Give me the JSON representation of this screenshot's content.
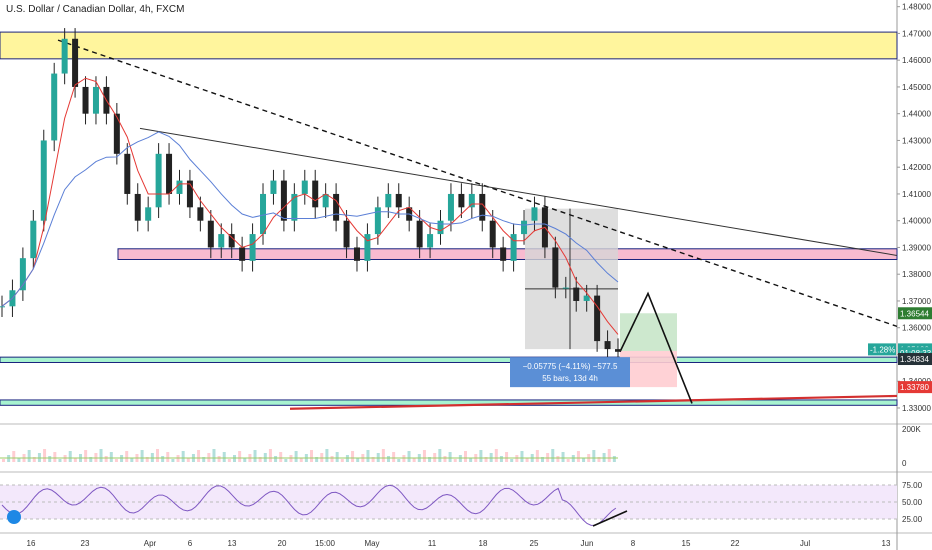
{
  "header": {
    "title": "U.S. Dollar / Canadian Dollar, 4h, FXCM"
  },
  "colors": {
    "bull": "#26a69a",
    "bear": "#ef5350",
    "candle_body_bull": "#26a69a",
    "candle_body_bear": "#222222",
    "ma_red": "#e53935",
    "ma_blue": "#5b7fd6",
    "rsi_line": "#7e57c2",
    "rsi_fill": "#f3e8fb",
    "yellow_zone": "#fff59d",
    "pink_zone": "#f8bbd0",
    "teal_zone": "#a7f3d0",
    "green_target": "#c8e6c9",
    "red_stop": "#ffcdd2",
    "axis_text": "#333333"
  },
  "chart_data": [
    {
      "type": "candlestick",
      "title": "U.S. Dollar / Canadian Dollar, 4h, FXCM",
      "y_ticks": [
        "1.48000",
        "1.47000",
        "1.46000",
        "1.45000",
        "1.44000",
        "1.43000",
        "1.42000",
        "1.41000",
        "1.40000",
        "1.39000",
        "1.38000",
        "1.37000",
        "1.36000",
        "1.35000",
        "1.34000",
        "1.33000"
      ],
      "ylim": [
        1.327,
        1.481
      ],
      "x_ticks": [
        "16",
        "23",
        "Apr",
        "6",
        "13",
        "20",
        "15:00",
        "May",
        "11",
        "18",
        "25",
        "Jun",
        "8",
        "15",
        "22",
        "Jul",
        "13"
      ],
      "price_path": [
        [
          0,
          1.368
        ],
        [
          1,
          1.374
        ],
        [
          2,
          1.386
        ],
        [
          3,
          1.4
        ],
        [
          4,
          1.43
        ],
        [
          5,
          1.455
        ],
        [
          6,
          1.468
        ],
        [
          7,
          1.45
        ],
        [
          8,
          1.44
        ],
        [
          9,
          1.45
        ],
        [
          10,
          1.44
        ],
        [
          11,
          1.425
        ],
        [
          12,
          1.41
        ],
        [
          13,
          1.4
        ],
        [
          14,
          1.405
        ],
        [
          15,
          1.425
        ],
        [
          16,
          1.41
        ],
        [
          17,
          1.415
        ],
        [
          18,
          1.405
        ],
        [
          19,
          1.4
        ],
        [
          20,
          1.39
        ],
        [
          21,
          1.395
        ],
        [
          22,
          1.39
        ],
        [
          23,
          1.385
        ],
        [
          24,
          1.395
        ],
        [
          25,
          1.41
        ],
        [
          26,
          1.415
        ],
        [
          27,
          1.4
        ],
        [
          28,
          1.41
        ],
        [
          29,
          1.415
        ],
        [
          30,
          1.405
        ],
        [
          31,
          1.41
        ],
        [
          32,
          1.4
        ],
        [
          33,
          1.39
        ],
        [
          34,
          1.385
        ],
        [
          35,
          1.395
        ],
        [
          36,
          1.405
        ],
        [
          37,
          1.41
        ],
        [
          38,
          1.405
        ],
        [
          39,
          1.4
        ],
        [
          40,
          1.39
        ],
        [
          41,
          1.395
        ],
        [
          42,
          1.4
        ],
        [
          43,
          1.41
        ],
        [
          44,
          1.405
        ],
        [
          45,
          1.41
        ],
        [
          46,
          1.4
        ],
        [
          47,
          1.39
        ],
        [
          48,
          1.385
        ],
        [
          49,
          1.395
        ],
        [
          50,
          1.4
        ],
        [
          51,
          1.405
        ],
        [
          52,
          1.39
        ],
        [
          53,
          1.375
        ],
        [
          54,
          1.375
        ],
        [
          55,
          1.37
        ],
        [
          56,
          1.372
        ],
        [
          57,
          1.355
        ],
        [
          58,
          1.352
        ],
        [
          59,
          1.351
        ]
      ],
      "moving_averages": [
        "red",
        "blue"
      ],
      "labels": {
        "price_tag_green": "1.36544",
        "price_tag_current_pct": "-1.28%",
        "price_tag_current": "1.35188",
        "price_tag_time": "01:08:33",
        "price_tag_dark": "1.34834",
        "price_tag_red": "1.33780"
      },
      "measure": {
        "line1": "−0.05775 (−4.11%) −577.5",
        "line2": "55 bars, 13d 4h"
      }
    },
    {
      "type": "bar",
      "title": "",
      "y_ticks": [
        "200K",
        "0"
      ]
    },
    {
      "type": "line",
      "title": "",
      "y_ticks": [
        "75.00",
        "50.00",
        "25.00"
      ]
    }
  ]
}
